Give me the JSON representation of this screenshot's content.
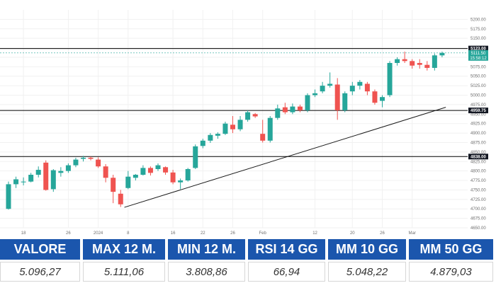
{
  "chart_data": {
    "type": "candlestick",
    "ylim": [
      4650,
      5225
    ],
    "y_ticks": [
      4650,
      4675,
      4700,
      4725,
      4750,
      4775,
      4800,
      4825,
      4850,
      4875,
      4900,
      4925,
      4950,
      4975,
      5000,
      5025,
      5050,
      5075,
      5100,
      5125,
      5150,
      5175,
      5200
    ],
    "y_tick_labels": [
      "4650.00",
      "4675.00",
      "4700.00",
      "4725.00",
      "4750.00",
      "4775.00",
      "4800.00",
      "4825.00",
      "4850.00",
      "4875.00",
      "4900.00",
      "4925.00",
      "4950.00",
      "4975.00",
      "5000.00",
      "5025.00",
      "5050.00",
      "5075.00",
      "5100.00",
      "5125.00",
      "5150.00",
      "5175.00",
      "5200.00"
    ],
    "x_tick_labels": [
      {
        "label": "18",
        "index": 2
      },
      {
        "label": "26",
        "index": 8
      },
      {
        "label": "2024",
        "index": 12
      },
      {
        "label": "8",
        "index": 16
      },
      {
        "label": "16",
        "index": 22
      },
      {
        "label": "22",
        "index": 26
      },
      {
        "label": "26",
        "index": 30
      },
      {
        "label": "Feb",
        "index": 34
      },
      {
        "label": "12",
        "index": 41
      },
      {
        "label": "20",
        "index": 46
      },
      {
        "label": "26",
        "index": 50
      },
      {
        "label": "Mar",
        "index": 54
      }
    ],
    "horizontal_levels": [
      {
        "value": 5123,
        "label": "5123.00"
      },
      {
        "value": 4959.75,
        "label": "4959.75"
      },
      {
        "value": 4838,
        "label": "4838.00"
      }
    ],
    "current_price": {
      "value": 5111.5,
      "price_label": "5111.50",
      "time_label": "15:58:12"
    },
    "trendline": {
      "start": {
        "index": 15.5,
        "value": 4704
      },
      "end": {
        "index": 58.5,
        "value": 4968
      }
    },
    "candles": [
      {
        "o": 4700,
        "h": 4772,
        "l": 4698,
        "c": 4765
      },
      {
        "o": 4765,
        "h": 4785,
        "l": 4755,
        "c": 4778
      },
      {
        "o": 4770,
        "h": 4783,
        "l": 4762,
        "c": 4772
      },
      {
        "o": 4772,
        "h": 4795,
        "l": 4770,
        "c": 4790
      },
      {
        "o": 4790,
        "h": 4812,
        "l": 4783,
        "c": 4803
      },
      {
        "o": 4822,
        "h": 4828,
        "l": 4748,
        "c": 4750
      },
      {
        "o": 4752,
        "h": 4805,
        "l": 4745,
        "c": 4802
      },
      {
        "o": 4795,
        "h": 4810,
        "l": 4785,
        "c": 4800
      },
      {
        "o": 4800,
        "h": 4820,
        "l": 4795,
        "c": 4815
      },
      {
        "o": 4815,
        "h": 4835,
        "l": 4810,
        "c": 4830
      },
      {
        "o": 4832,
        "h": 4840,
        "l": 4825,
        "c": 4835
      },
      {
        "o": 4835,
        "h": 4838,
        "l": 4828,
        "c": 4832
      },
      {
        "o": 4830,
        "h": 4836,
        "l": 4808,
        "c": 4812
      },
      {
        "o": 4812,
        "h": 4818,
        "l": 4770,
        "c": 4782
      },
      {
        "o": 4782,
        "h": 4790,
        "l": 4715,
        "c": 4745
      },
      {
        "o": 4740,
        "h": 4750,
        "l": 4705,
        "c": 4712
      },
      {
        "o": 4755,
        "h": 4800,
        "l": 4752,
        "c": 4785
      },
      {
        "o": 4782,
        "h": 4792,
        "l": 4775,
        "c": 4790
      },
      {
        "o": 4790,
        "h": 4815,
        "l": 4788,
        "c": 4808
      },
      {
        "o": 4808,
        "h": 4812,
        "l": 4788,
        "c": 4795
      },
      {
        "o": 4805,
        "h": 4820,
        "l": 4800,
        "c": 4815
      },
      {
        "o": 4810,
        "h": 4812,
        "l": 4790,
        "c": 4796
      },
      {
        "o": 4796,
        "h": 4803,
        "l": 4765,
        "c": 4770
      },
      {
        "o": 4770,
        "h": 4780,
        "l": 4752,
        "c": 4775
      },
      {
        "o": 4775,
        "h": 4808,
        "l": 4772,
        "c": 4805
      },
      {
        "o": 4808,
        "h": 4870,
        "l": 4805,
        "c": 4865
      },
      {
        "o": 4866,
        "h": 4885,
        "l": 4860,
        "c": 4880
      },
      {
        "o": 4880,
        "h": 4900,
        "l": 4874,
        "c": 4895
      },
      {
        "o": 4893,
        "h": 4902,
        "l": 4885,
        "c": 4898
      },
      {
        "o": 4898,
        "h": 4930,
        "l": 4895,
        "c": 4925
      },
      {
        "o": 4922,
        "h": 4945,
        "l": 4900,
        "c": 4910
      },
      {
        "o": 4910,
        "h": 4945,
        "l": 4905,
        "c": 4935
      },
      {
        "o": 4935,
        "h": 4960,
        "l": 4930,
        "c": 4955
      },
      {
        "o": 4950,
        "h": 4953,
        "l": 4940,
        "c": 4944
      },
      {
        "o": 4898,
        "h": 4935,
        "l": 4875,
        "c": 4880
      },
      {
        "o": 4880,
        "h": 4945,
        "l": 4875,
        "c": 4940
      },
      {
        "o": 4940,
        "h": 4975,
        "l": 4935,
        "c": 4965
      },
      {
        "o": 4968,
        "h": 4980,
        "l": 4950,
        "c": 4955
      },
      {
        "o": 4955,
        "h": 4978,
        "l": 4950,
        "c": 4970
      },
      {
        "o": 4970,
        "h": 4975,
        "l": 4955,
        "c": 4960
      },
      {
        "o": 4960,
        "h": 5005,
        "l": 4955,
        "c": 5000
      },
      {
        "o": 5000,
        "h": 5015,
        "l": 4995,
        "c": 5005
      },
      {
        "o": 5010,
        "h": 5035,
        "l": 5005,
        "c": 5025
      },
      {
        "o": 5025,
        "h": 5060,
        "l": 5020,
        "c": 5030
      },
      {
        "o": 5028,
        "h": 5045,
        "l": 4935,
        "c": 4960
      },
      {
        "o": 4960,
        "h": 5010,
        "l": 4955,
        "c": 5005
      },
      {
        "o": 5010,
        "h": 5035,
        "l": 5000,
        "c": 5025
      },
      {
        "o": 5025,
        "h": 5040,
        "l": 5015,
        "c": 5035
      },
      {
        "o": 5030,
        "h": 5035,
        "l": 5000,
        "c": 5010
      },
      {
        "o": 5010,
        "h": 5015,
        "l": 4975,
        "c": 4980
      },
      {
        "o": 4985,
        "h": 5000,
        "l": 4968,
        "c": 4995
      },
      {
        "o": 5000,
        "h": 5090,
        "l": 4995,
        "c": 5085
      },
      {
        "o": 5085,
        "h": 5100,
        "l": 5078,
        "c": 5095
      },
      {
        "o": 5095,
        "h": 5115,
        "l": 5085,
        "c": 5090
      },
      {
        "o": 5090,
        "h": 5095,
        "l": 5070,
        "c": 5078
      },
      {
        "o": 5085,
        "h": 5095,
        "l": 5070,
        "c": 5080
      },
      {
        "o": 5080,
        "h": 5090,
        "l": 5065,
        "c": 5072
      },
      {
        "o": 5072,
        "h": 5110,
        "l": 5065,
        "c": 5105
      },
      {
        "o": 5105,
        "h": 5115,
        "l": 5100,
        "c": 5111.5
      }
    ]
  },
  "stats": {
    "headers": [
      "VALORE",
      "MAX 12 M.",
      "MIN 12 M.",
      "RSI 14 GG",
      "MM 10 GG",
      "MM 50 GG"
    ],
    "values": [
      "5.096,27",
      "5.111,06",
      "3.808,86",
      "66,94",
      "5.048,22",
      "4.879,03"
    ]
  },
  "colors": {
    "up": "#26a69a",
    "down": "#ef5350",
    "level_line": "#000000",
    "header_bg": "#1b56ad",
    "current_price": "#26a69a"
  }
}
